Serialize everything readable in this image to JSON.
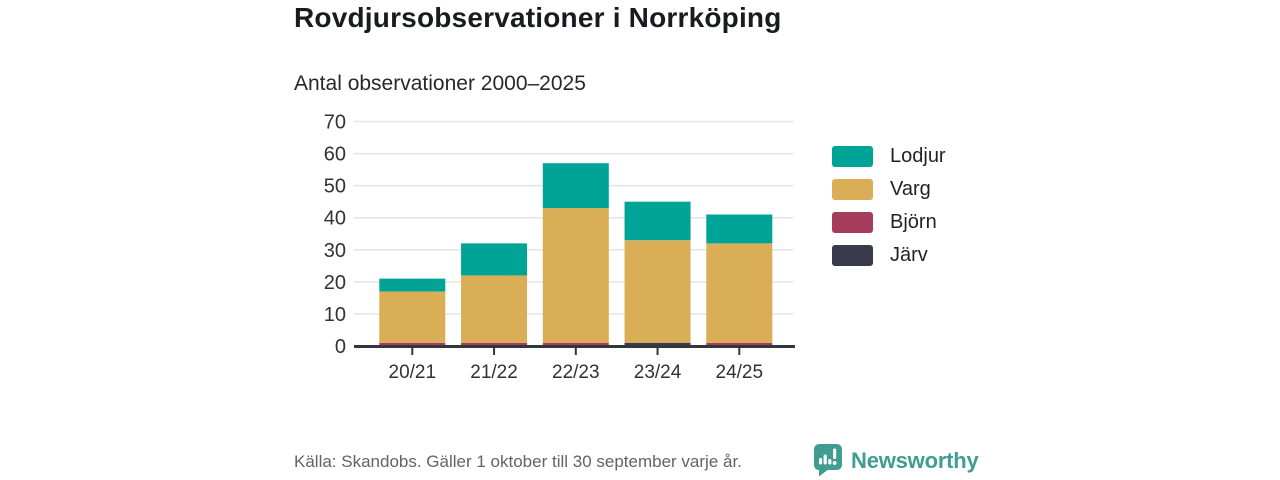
{
  "chart_data": {
    "type": "bar",
    "stacked": true,
    "title": "Rovdjursobservationer i Norrköping",
    "subtitle": "Antal observationer 2000–2025",
    "categories": [
      "20/21",
      "21/22",
      "22/23",
      "23/24",
      "24/25"
    ],
    "series": [
      {
        "name": "Järv",
        "color": "#3a3b4a",
        "values": [
          0,
          0,
          0,
          1,
          0
        ]
      },
      {
        "name": "Björn",
        "color": "#a63c5c",
        "values": [
          1,
          1,
          1,
          0,
          1
        ]
      },
      {
        "name": "Varg",
        "color": "#d9ae56",
        "values": [
          16,
          21,
          42,
          32,
          31
        ]
      },
      {
        "name": "Lodjur",
        "color": "#00a496",
        "values": [
          4,
          10,
          14,
          12,
          9
        ]
      }
    ],
    "totals": [
      21,
      32,
      57,
      45,
      41
    ],
    "ylim": [
      0,
      70
    ],
    "yticks": [
      0,
      10,
      20,
      30,
      40,
      50,
      60,
      70
    ],
    "grid": true,
    "legend": {
      "position": "right",
      "order": [
        "Lodjur",
        "Varg",
        "Björn",
        "Järv"
      ]
    }
  },
  "footer": {
    "source": "Källa: Skandobs. Gäller 1 oktober till 30 september varje år.",
    "brand": "Newsworthy",
    "brand_color": "#3f9d92"
  },
  "colors": {
    "background": "#ffffff",
    "axis": "#33363c",
    "gridline": "#e4e4e6",
    "tick_label": "#303236",
    "title": "#191c1f",
    "source_text": "#5f646a"
  }
}
